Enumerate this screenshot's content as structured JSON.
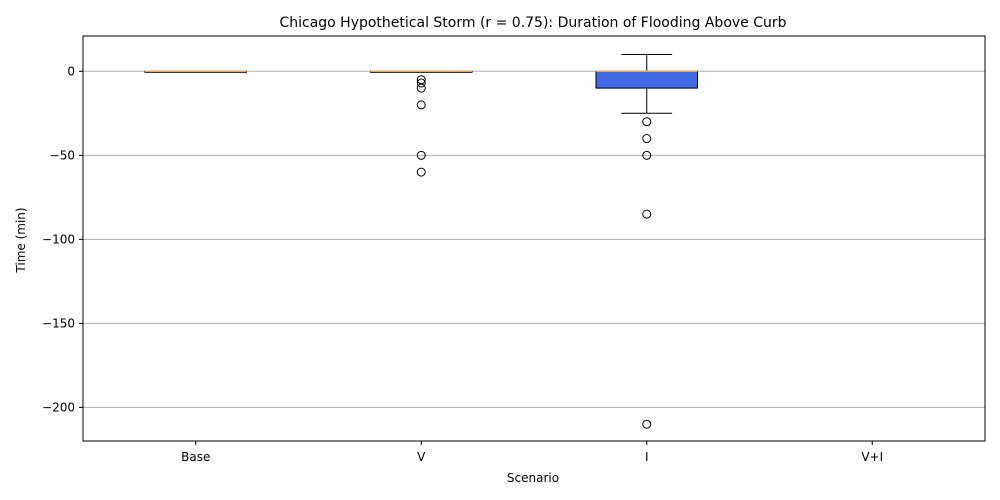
{
  "chart_data": {
    "type": "box",
    "title": "Chicago Hypothetical Storm (r = 0.75): Duration of Flooding Above Curb",
    "xlabel": "Scenario",
    "ylabel": "Time (min)",
    "ylim": [
      -220,
      21
    ],
    "yticks": [
      0,
      -50,
      -100,
      -150,
      -200
    ],
    "ytick_labels": [
      "0",
      "−50",
      "−100",
      "−150",
      "−200"
    ],
    "grid": "horizontal",
    "categories": [
      "Base",
      "V",
      "I",
      "V+I"
    ],
    "boxes": [
      {
        "category": "Base",
        "q1": 0,
        "median": 0,
        "q3": 0,
        "whisker_low": 0,
        "whisker_high": 0,
        "outliers": []
      },
      {
        "category": "V",
        "q1": 0,
        "median": 0,
        "q3": 0,
        "whisker_low": 0,
        "whisker_high": 0,
        "outliers": [
          -5,
          -7,
          -10,
          -20,
          -50,
          -60
        ]
      },
      {
        "category": "I",
        "q1": -10,
        "median": 0,
        "q3": 0,
        "whisker_low": -25,
        "whisker_high": 10,
        "outliers": [
          -30,
          -40,
          -50,
          -85,
          -210
        ]
      },
      {
        "category": "V+I",
        "q1": null,
        "median": null,
        "q3": null,
        "whisker_low": null,
        "whisker_high": null,
        "outliers": []
      }
    ],
    "colors": {
      "box_fill": "#4169e1",
      "median": "#f5a04a",
      "outline": "#000000",
      "grid": "#b0b0b0"
    }
  }
}
